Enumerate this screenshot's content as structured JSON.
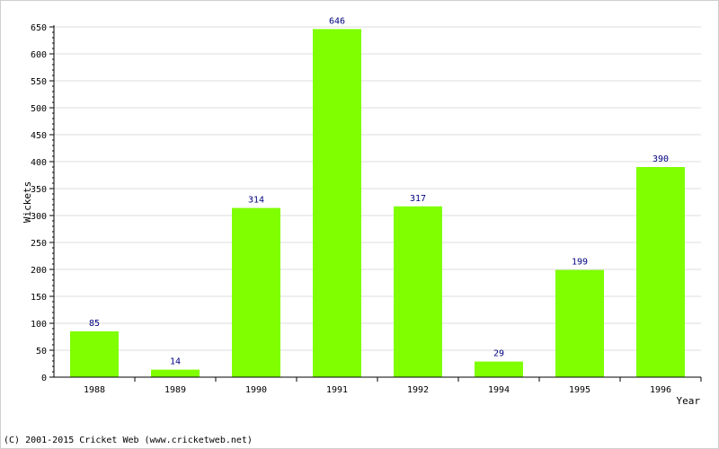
{
  "chart_data": {
    "type": "bar",
    "xlabel": "Year",
    "ylabel": "Wickets",
    "categories": [
      "1988",
      "1989",
      "1990",
      "1991",
      "1992",
      "1994",
      "1995",
      "1996"
    ],
    "values": [
      85,
      14,
      314,
      646,
      317,
      29,
      199,
      390
    ],
    "ylim": [
      0,
      650
    ],
    "ytick_step": 50,
    "grid": true,
    "bar_color": "#7fff00",
    "label_color": "#000080"
  },
  "footer": {
    "copyright": "(C) 2001-2015 Cricket Web (www.cricketweb.net)"
  }
}
